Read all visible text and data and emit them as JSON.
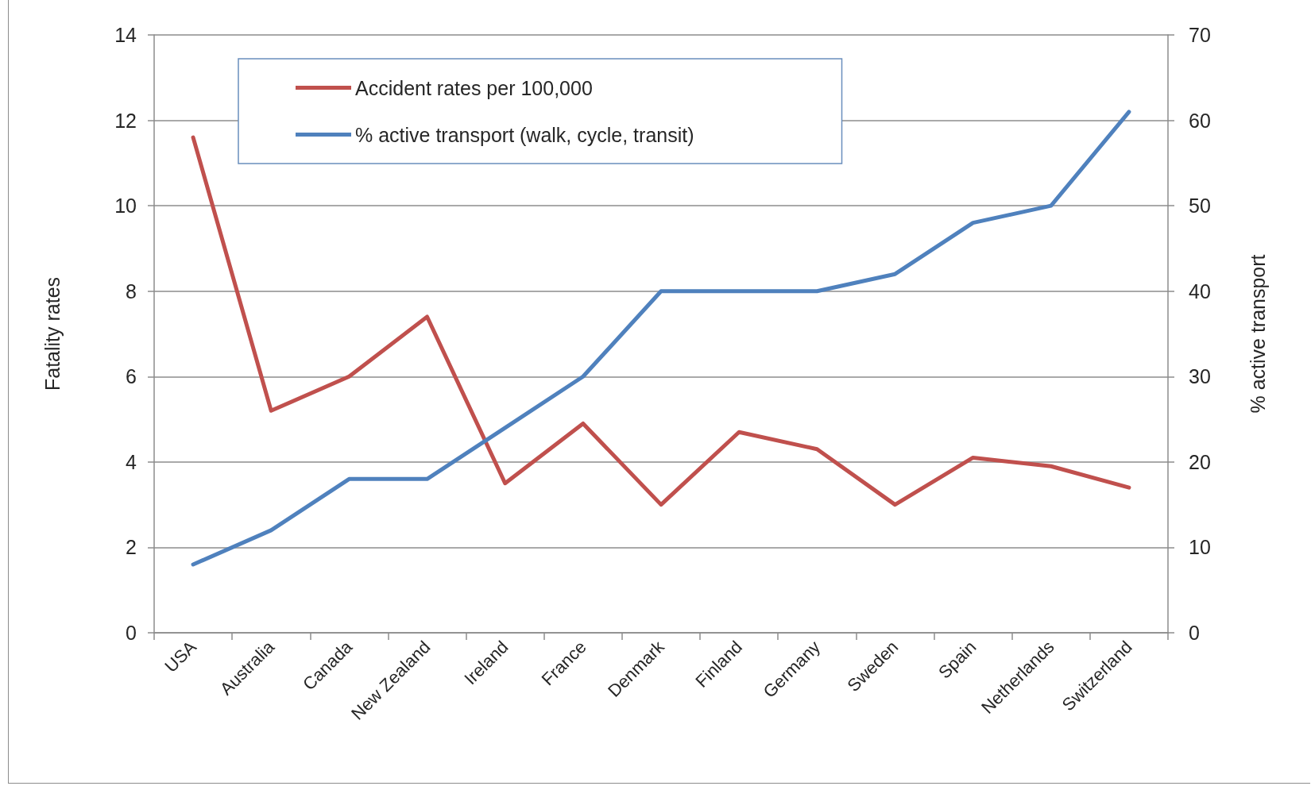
{
  "chart_data": {
    "type": "line",
    "categories": [
      "USA",
      "Australia",
      "Canada",
      "New Zealand",
      "Ireland",
      "France",
      "Denmark",
      "Finland",
      "Germany",
      "Sweden",
      "Spain",
      "Netherlands",
      "Switzerland"
    ],
    "series": [
      {
        "name": "Accident rates per 100,000",
        "color": "#c0504d",
        "values": [
          11.6,
          5.2,
          6.0,
          7.4,
          3.5,
          4.9,
          3.0,
          4.7,
          4.3,
          3.0,
          4.1,
          3.9,
          3.4
        ]
      },
      {
        "name": "% active transport (walk, cycle, transit)",
        "color": "#4f81bd",
        "axis": "y2",
        "values": [
          8,
          12,
          18,
          18,
          24,
          30,
          40,
          40,
          40,
          42,
          48,
          50,
          61
        ]
      }
    ],
    "ylabel": "Fatality rates",
    "y2label": "% active transport",
    "ylim": [
      0,
      14
    ],
    "yticks": [
      0,
      2,
      4,
      6,
      8,
      10,
      12,
      14
    ],
    "y2lim": [
      0,
      70
    ],
    "y2ticks": [
      0,
      10,
      20,
      30,
      40,
      50,
      60,
      70
    ],
    "grid": "y",
    "legend": "top left",
    "marker": "none",
    "line_style": "solid"
  }
}
